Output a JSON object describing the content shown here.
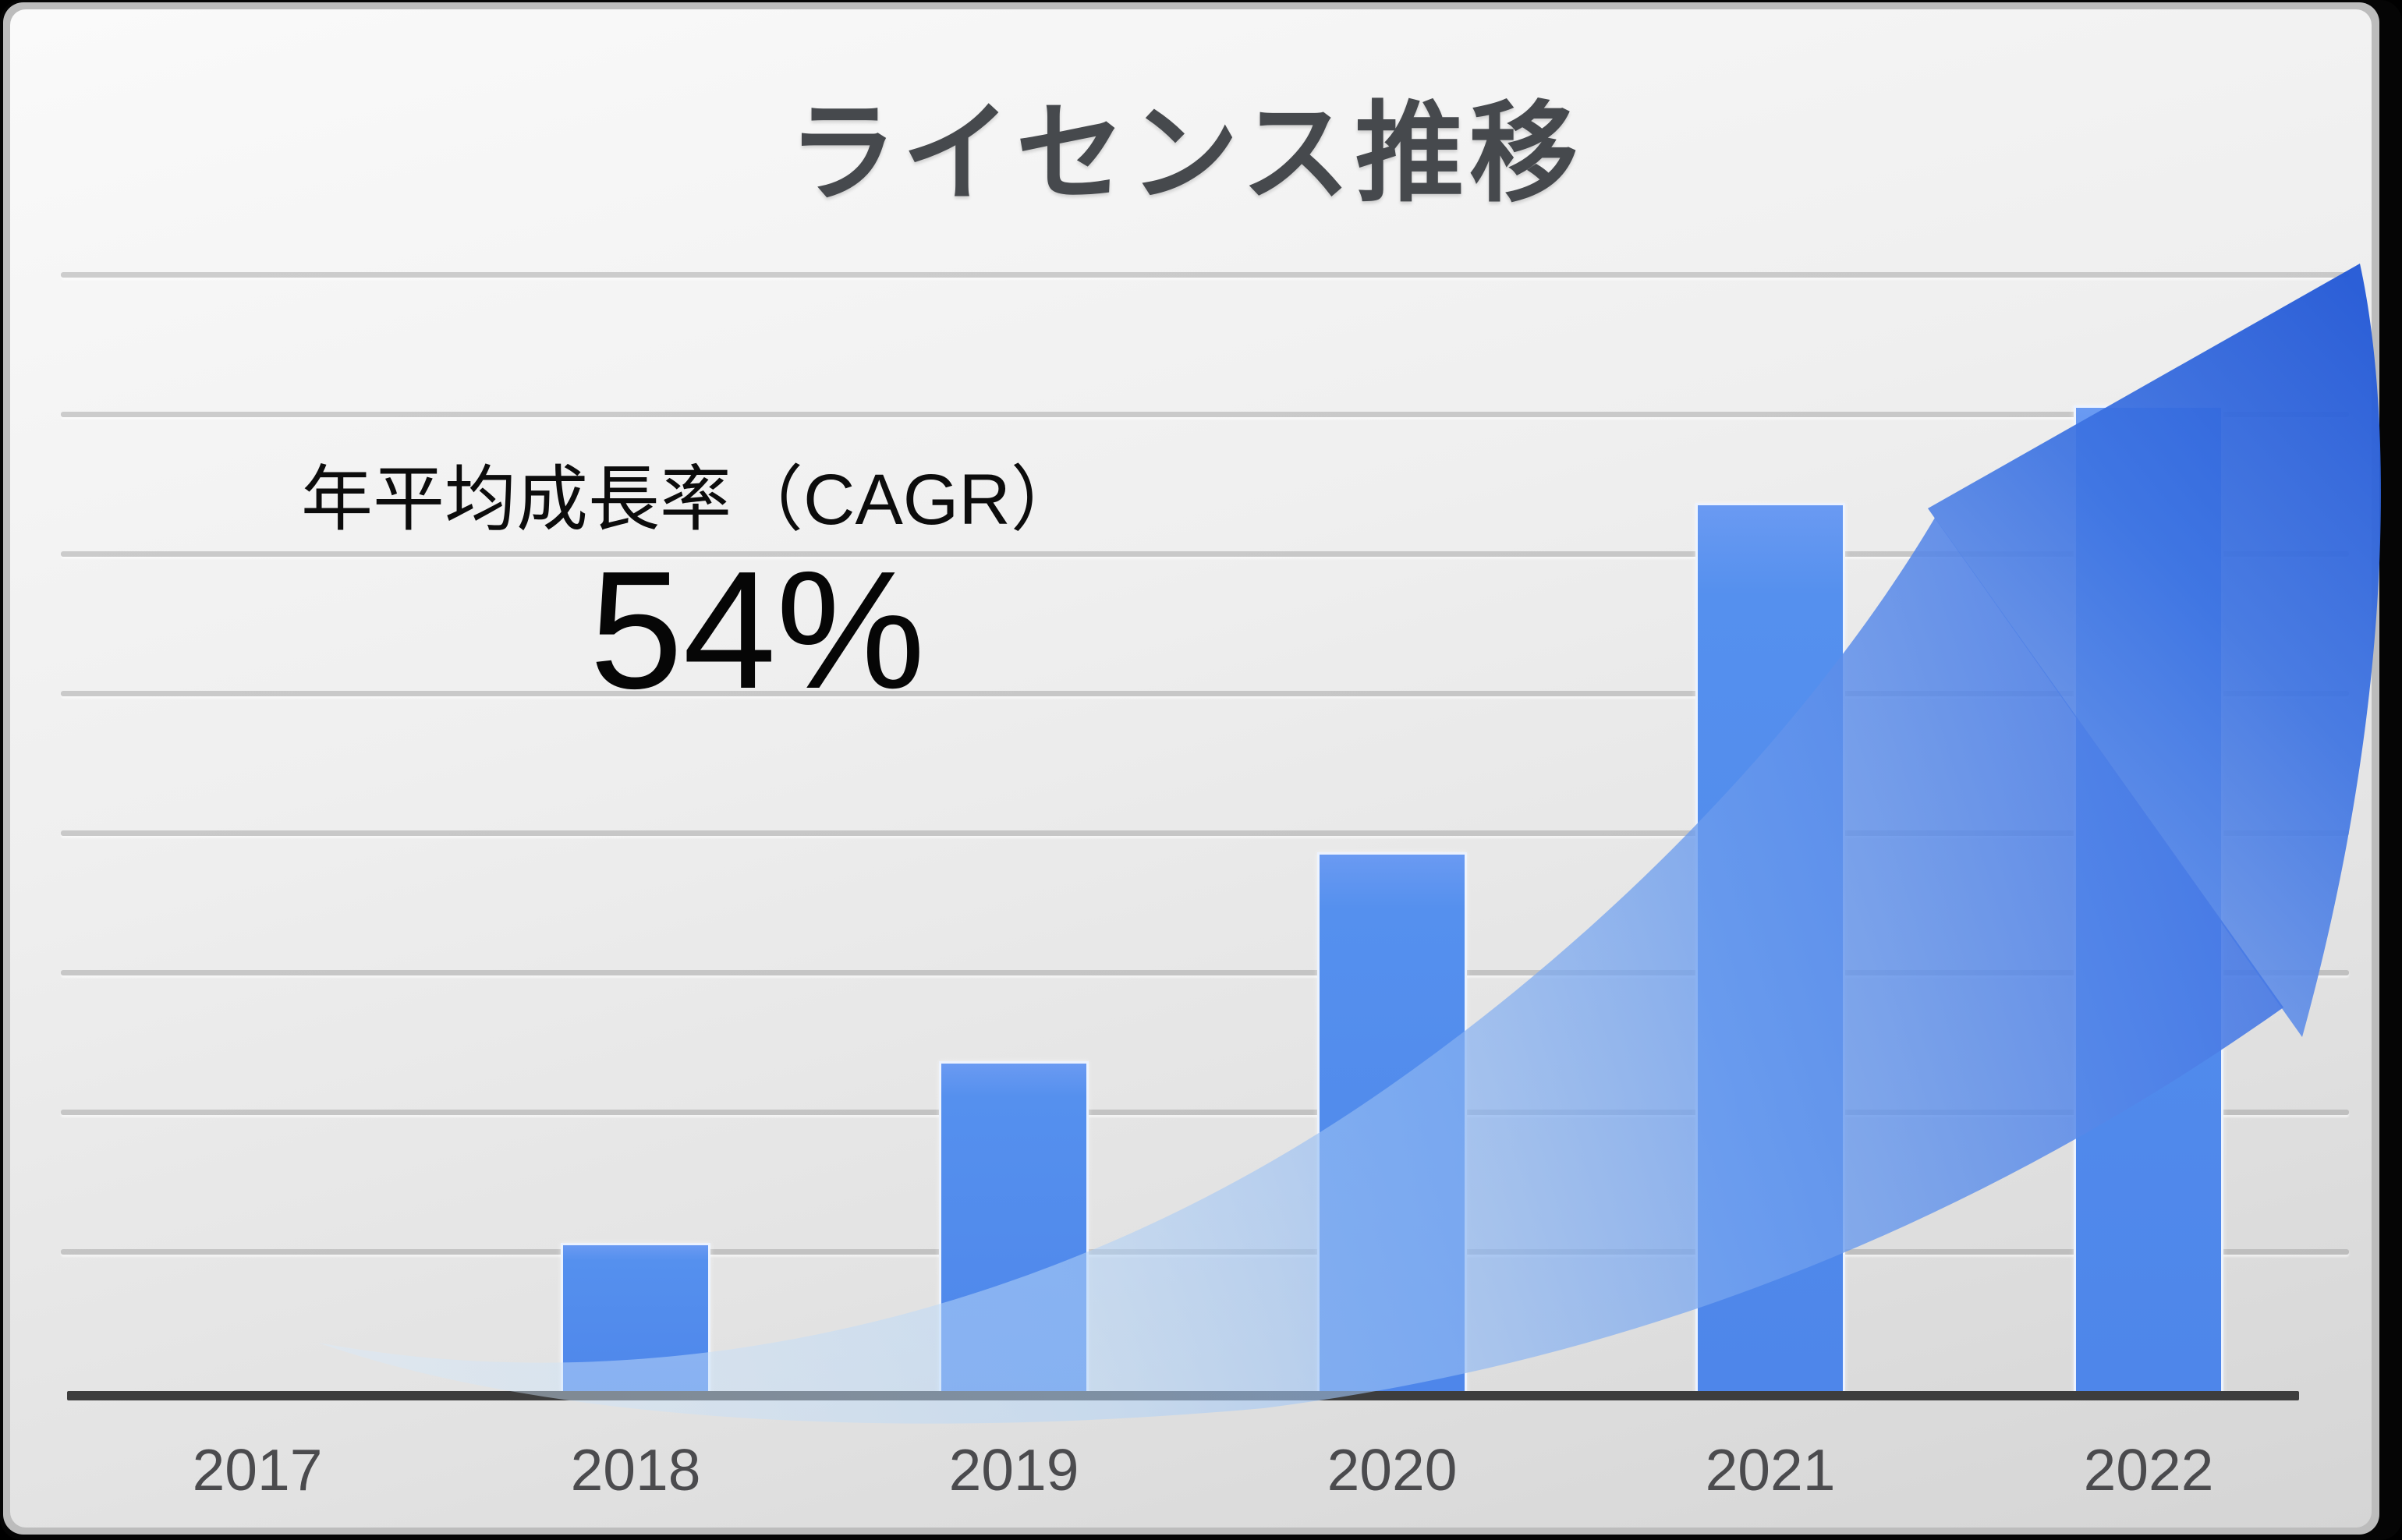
{
  "slide": {
    "title": "ライセンス推移"
  },
  "annotation": {
    "label": "年平均成長率（CAGR）",
    "value": "54%"
  },
  "chart_data": {
    "type": "bar",
    "title": "ライセンス推移",
    "categories": [
      "2017",
      "2018",
      "2019",
      "2020",
      "2021",
      "2022"
    ],
    "values": [
      0,
      1.1,
      2.4,
      3.9,
      6.4,
      7.1
    ],
    "value_unit": "gridline-intervals (y-axis has no numeric labels; heights estimated from 8 unlabeled gridlines)",
    "xlabel": "",
    "ylabel": "",
    "ylim": [
      0,
      8
    ],
    "gridline_count": 8,
    "grid": "horizontal gridlines on",
    "legend": "none",
    "annotation_text": "年平均成長率（CAGR）54%",
    "overlay": "large curved blue growth arrow sweeping up from 2017 baseline to top-right"
  },
  "colors": {
    "bar": "#5590EE",
    "bar_border": "#F8FBFF",
    "arrow_strong": "#2F63DD",
    "arrow_light": "#CFE4FA",
    "axis_line": "#3D3D3D",
    "gridline": "#949494",
    "title_text": "#46494D",
    "tick_text": "#4B4B4E",
    "annotation_text": "#0C0C0C",
    "background_top": "#FAFAFA",
    "background_bottom": "#D5D5D5",
    "slide_border": "#050505"
  }
}
